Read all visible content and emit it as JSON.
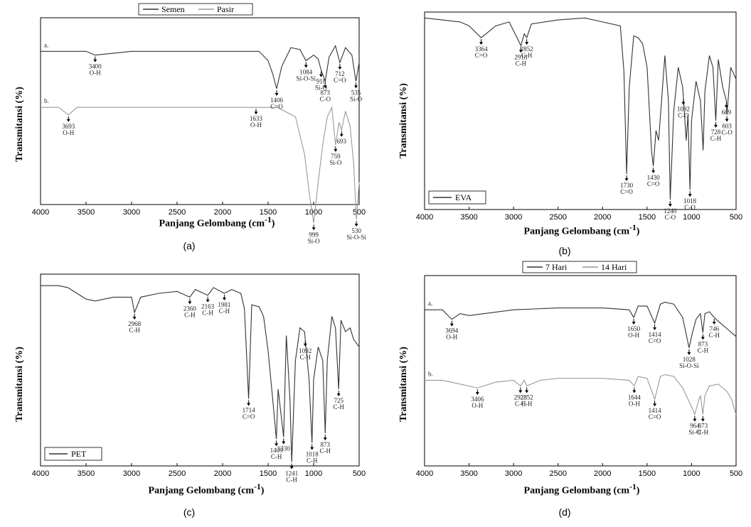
{
  "chart_data": [
    {
      "id": "a",
      "type": "line",
      "caption": "(a)",
      "xlabel": "Panjang Gelombang (cm",
      "xlabel_sup": "-1",
      "xlabel_end": ")",
      "ylabel": "Transmitansi (%)",
      "xlim": [
        4000,
        500
      ],
      "xticks": [
        "4000",
        "3500",
        "3000",
        "2500",
        "2000",
        "1500",
        "1000",
        "500"
      ],
      "legend": [
        "Semen",
        "Pasir"
      ],
      "series": [
        {
          "name": "a.",
          "offset": 0.82,
          "x": [
            4000,
            3500,
            3400,
            3000,
            2500,
            2000,
            1600,
            1500,
            1450,
            1406,
            1350,
            1250,
            1150,
            1084,
            1000,
            950,
            918,
            873,
            830,
            760,
            712,
            650,
            580,
            535,
            500
          ],
          "y": [
            0,
            0,
            -0.02,
            0,
            0,
            0,
            0,
            -0.05,
            -0.12,
            -0.2,
            -0.08,
            0.02,
            0.01,
            -0.05,
            -0.02,
            -0.04,
            -0.1,
            -0.16,
            -0.03,
            0.03,
            -0.06,
            0.02,
            -0.02,
            -0.16,
            -0.06
          ]
        },
        {
          "name": "b.",
          "offset": 0.52,
          "x": [
            4000,
            3800,
            3693,
            3600,
            3000,
            2500,
            2000,
            1633,
            1400,
            1200,
            1100,
            1050,
            999,
            950,
            900,
            850,
            800,
            759,
            720,
            693,
            650,
            600,
            560,
            530,
            500
          ],
          "y": [
            0,
            0,
            -0.04,
            0,
            0,
            0,
            0,
            0,
            0,
            -0.05,
            -0.25,
            -0.45,
            -0.62,
            -0.4,
            -0.2,
            -0.05,
            0.0,
            -0.2,
            -0.08,
            -0.12,
            -0.02,
            -0.1,
            -0.3,
            -0.6,
            -0.4
          ]
        }
      ],
      "annotations": [
        {
          "x": 3400,
          "row": "a",
          "lines": [
            "3400",
            "O-H"
          ]
        },
        {
          "x": 1406,
          "row": "a",
          "lines": [
            "1406",
            "C=O"
          ]
        },
        {
          "x": 1084,
          "row": "a",
          "lines": [
            "1084",
            "Si-O-Si"
          ]
        },
        {
          "x": 918,
          "row": "a",
          "lines": [
            "918",
            "Si-O"
          ]
        },
        {
          "x": 873,
          "row": "a",
          "lines": [
            "873",
            "C-O"
          ]
        },
        {
          "x": 712,
          "row": "a",
          "lines": [
            "712",
            "C=O"
          ]
        },
        {
          "x": 535,
          "row": "a",
          "lines": [
            "535",
            "Si-O"
          ]
        },
        {
          "x": 3693,
          "row": "b",
          "lines": [
            "3693",
            "O-H"
          ]
        },
        {
          "x": 1633,
          "row": "b",
          "lines": [
            "1633",
            "O-H"
          ]
        },
        {
          "x": 999,
          "row": "b",
          "lines": [
            "999",
            "Si-O"
          ]
        },
        {
          "x": 759,
          "row": "b",
          "lines": [
            "759",
            "Si-O"
          ]
        },
        {
          "x": 693,
          "row": "b",
          "lines": [
            "693"
          ]
        },
        {
          "x": 530,
          "row": "b",
          "lines": [
            "530",
            "Si-O-Si"
          ]
        }
      ]
    },
    {
      "id": "b",
      "type": "line",
      "caption": "(b)",
      "xlabel": "Panjang Gelombang (cm",
      "xlabel_sup": "-1",
      "xlabel_end": ")",
      "ylabel": "Transmitansi (%)",
      "xlim": [
        4000,
        500
      ],
      "xticks": [
        "4000",
        "3500",
        "3000",
        "2500",
        "2000",
        "1500",
        "1000",
        "500"
      ],
      "legend": [
        "EVA"
      ],
      "series": [
        {
          "name": "EVA",
          "x": [
            4000,
            3800,
            3600,
            3500,
            3364,
            3200,
            3050,
            2950,
            2918,
            2880,
            2852,
            2800,
            2500,
            2200,
            2000,
            1800,
            1760,
            1730,
            1700,
            1650,
            1600,
            1550,
            1500,
            1450,
            1430,
            1400,
            1370,
            1300,
            1260,
            1240,
            1200,
            1150,
            1100,
            1060,
            1040,
            1018,
            1000,
            950,
            900,
            870,
            850,
            800,
            760,
            728,
            700,
            650,
            609,
            603,
            560,
            500
          ],
          "y": [
            0.97,
            0.96,
            0.95,
            0.93,
            0.87,
            0.93,
            0.95,
            0.86,
            0.83,
            0.89,
            0.87,
            0.94,
            0.96,
            0.97,
            0.95,
            0.93,
            0.7,
            0.18,
            0.62,
            0.88,
            0.87,
            0.84,
            0.72,
            0.3,
            0.22,
            0.4,
            0.35,
            0.78,
            0.55,
            0.05,
            0.5,
            0.72,
            0.62,
            0.35,
            0.48,
            0.1,
            0.45,
            0.65,
            0.55,
            0.3,
            0.6,
            0.78,
            0.72,
            0.45,
            0.76,
            0.62,
            0.55,
            0.48,
            0.72,
            0.66
          ]
        }
      ],
      "annotations": [
        {
          "x": 3364,
          "lines": [
            "3364",
            "C=O"
          ]
        },
        {
          "x": 2918,
          "lines": [
            "2918",
            "C-H"
          ]
        },
        {
          "x": 2852,
          "lines": [
            "2852",
            "C-H"
          ]
        },
        {
          "x": 1730,
          "lines": [
            "1730",
            "C=O"
          ]
        },
        {
          "x": 1430,
          "lines": [
            "1430",
            "C=O"
          ]
        },
        {
          "x": 1240,
          "lines": [
            "1240",
            "C-O"
          ]
        },
        {
          "x": 1092,
          "lines": [
            "1092",
            "C-O"
          ]
        },
        {
          "x": 1018,
          "lines": [
            "1018",
            "C-O"
          ]
        },
        {
          "x": 728,
          "lines": [
            "728",
            "C-H"
          ]
        },
        {
          "x": 609,
          "lines": [
            "609"
          ]
        },
        {
          "x": 603,
          "lines": [
            "603",
            "C-O"
          ]
        }
      ]
    },
    {
      "id": "c",
      "type": "line",
      "caption": "(c)",
      "xlabel": "Panjang Gelombang (cm",
      "xlabel_sup": "-1",
      "xlabel_end": ")",
      "ylabel": "Transmitansi (%)",
      "xlim": [
        4000,
        500
      ],
      "xticks": [
        "4000",
        "3500",
        "3000",
        "2500",
        "2000",
        "1500",
        "1000",
        "500"
      ],
      "legend": [
        "PET"
      ],
      "series": [
        {
          "name": "PET",
          "x": [
            4000,
            3800,
            3700,
            3600,
            3500,
            3400,
            3200,
            3000,
            2968,
            2900,
            2700,
            2500,
            2360,
            2300,
            2163,
            2100,
            1981,
            1900,
            1800,
            1760,
            1714,
            1680,
            1600,
            1550,
            1500,
            1450,
            1409,
            1390,
            1330,
            1300,
            1260,
            1241,
            1200,
            1150,
            1100,
            1050,
            1018,
            1000,
            950,
            900,
            873,
            850,
            800,
            760,
            725,
            700,
            650,
            600,
            560,
            500
          ],
          "y": [
            0.94,
            0.94,
            0.93,
            0.9,
            0.87,
            0.86,
            0.88,
            0.88,
            0.8,
            0.88,
            0.9,
            0.91,
            0.88,
            0.92,
            0.89,
            0.93,
            0.9,
            0.92,
            0.9,
            0.82,
            0.35,
            0.84,
            0.83,
            0.78,
            0.6,
            0.35,
            0.14,
            0.4,
            0.15,
            0.68,
            0.35,
            0.02,
            0.55,
            0.72,
            0.7,
            0.45,
            0.12,
            0.45,
            0.62,
            0.55,
            0.17,
            0.55,
            0.78,
            0.72,
            0.4,
            0.76,
            0.7,
            0.72,
            0.66,
            0.62
          ]
        }
      ],
      "annotations": [
        {
          "x": 2968,
          "lines": [
            "2968",
            "C-H"
          ]
        },
        {
          "x": 2360,
          "lines": [
            "2360",
            "C-H"
          ]
        },
        {
          "x": 2163,
          "lines": [
            "2163",
            "C-H"
          ]
        },
        {
          "x": 1981,
          "lines": [
            "1981",
            "C-H"
          ]
        },
        {
          "x": 1714,
          "lines": [
            "1714",
            "C=O"
          ]
        },
        {
          "x": 1409,
          "lines": [
            "1409",
            "C-H"
          ]
        },
        {
          "x": 1330,
          "lines": [
            "1330"
          ]
        },
        {
          "x": 1241,
          "lines": [
            "1241",
            "C-H"
          ]
        },
        {
          "x": 1092,
          "lines": [
            "1092",
            "C-H"
          ]
        },
        {
          "x": 1018,
          "lines": [
            "1018",
            "C-H"
          ]
        },
        {
          "x": 873,
          "lines": [
            "873",
            "C-H"
          ]
        },
        {
          "x": 725,
          "lines": [
            "725",
            "C-H"
          ]
        }
      ]
    },
    {
      "id": "d",
      "type": "line",
      "caption": "(d)",
      "xlabel": "Panjang Gelombang (cm",
      "xlabel_sup": "-1",
      "xlabel_end": ")",
      "ylabel": "Transmitansi (%)",
      "xlim": [
        4000,
        500
      ],
      "xticks": [
        "4000",
        "3500",
        "3000",
        "2500",
        "2000",
        "1500",
        "1000",
        "500"
      ],
      "legend": [
        "7 Hari",
        "14 Hari"
      ],
      "series": [
        {
          "name": "a.",
          "offset": 0.82,
          "x": [
            4000,
            3800,
            3694,
            3600,
            3500,
            3000,
            2500,
            2000,
            1700,
            1650,
            1600,
            1500,
            1414,
            1350,
            1300,
            1200,
            1100,
            1028,
            990,
            950,
            900,
            873,
            850,
            800,
            746,
            700,
            650,
            600,
            550,
            500
          ],
          "y": [
            0,
            0,
            -0.05,
            -0.02,
            -0.03,
            0.0,
            0.01,
            0.01,
            0.0,
            -0.04,
            0.02,
            0.02,
            -0.07,
            0.03,
            0.04,
            0.03,
            -0.04,
            -0.2,
            -0.12,
            -0.05,
            -0.02,
            -0.12,
            -0.02,
            -0.01,
            -0.04,
            -0.06,
            -0.08,
            -0.1,
            -0.12,
            -0.14
          ]
        },
        {
          "name": "b.",
          "offset": 0.45,
          "x": [
            4000,
            3800,
            3600,
            3406,
            3200,
            3000,
            2923,
            2880,
            2852,
            2700,
            2500,
            2000,
            1700,
            1644,
            1600,
            1500,
            1414,
            1350,
            1300,
            1200,
            1100,
            1000,
            964,
            930,
            900,
            873,
            850,
            800,
            700,
            600,
            550,
            500
          ],
          "y": [
            0,
            0,
            -0.02,
            -0.04,
            -0.01,
            0.0,
            -0.03,
            0.0,
            -0.03,
            0.0,
            0.01,
            0.01,
            0.0,
            -0.03,
            0.02,
            0.01,
            -0.1,
            0.02,
            0.03,
            0.02,
            -0.04,
            -0.14,
            -0.18,
            -0.12,
            -0.08,
            -0.18,
            -0.08,
            -0.03,
            -0.02,
            -0.06,
            -0.1,
            -0.18
          ]
        }
      ],
      "annotations": [
        {
          "x": 3694,
          "row": "a",
          "lines": [
            "3694",
            "O-H"
          ]
        },
        {
          "x": 1650,
          "row": "a",
          "lines": [
            "1650",
            "O-H"
          ]
        },
        {
          "x": 1414,
          "row": "a",
          "lines": [
            "1414",
            "C=O"
          ]
        },
        {
          "x": 1028,
          "row": "a",
          "lines": [
            "1028",
            "Si-O-Si"
          ]
        },
        {
          "x": 873,
          "row": "a",
          "lines": [
            "873",
            "C-H"
          ]
        },
        {
          "x": 746,
          "row": "a",
          "lines": [
            "746",
            "C-H"
          ]
        },
        {
          "x": 3406,
          "row": "b",
          "lines": [
            "3406",
            "O-H"
          ]
        },
        {
          "x": 2923,
          "row": "b",
          "lines": [
            "2923",
            "C-H"
          ]
        },
        {
          "x": 2852,
          "row": "b",
          "lines": [
            "2852",
            "C-H"
          ]
        },
        {
          "x": 1644,
          "row": "b",
          "lines": [
            "1644",
            "O-H"
          ]
        },
        {
          "x": 1414,
          "row": "b",
          "lines": [
            "1414",
            "C=O"
          ]
        },
        {
          "x": 964,
          "row": "b",
          "lines": [
            "964",
            "Si-O"
          ]
        },
        {
          "x": 873,
          "row": "b",
          "lines": [
            "873",
            "C-H"
          ]
        }
      ]
    }
  ],
  "colors": {
    "line_primary": "#333333",
    "line_secondary": "#999999",
    "axis": "#000000"
  }
}
